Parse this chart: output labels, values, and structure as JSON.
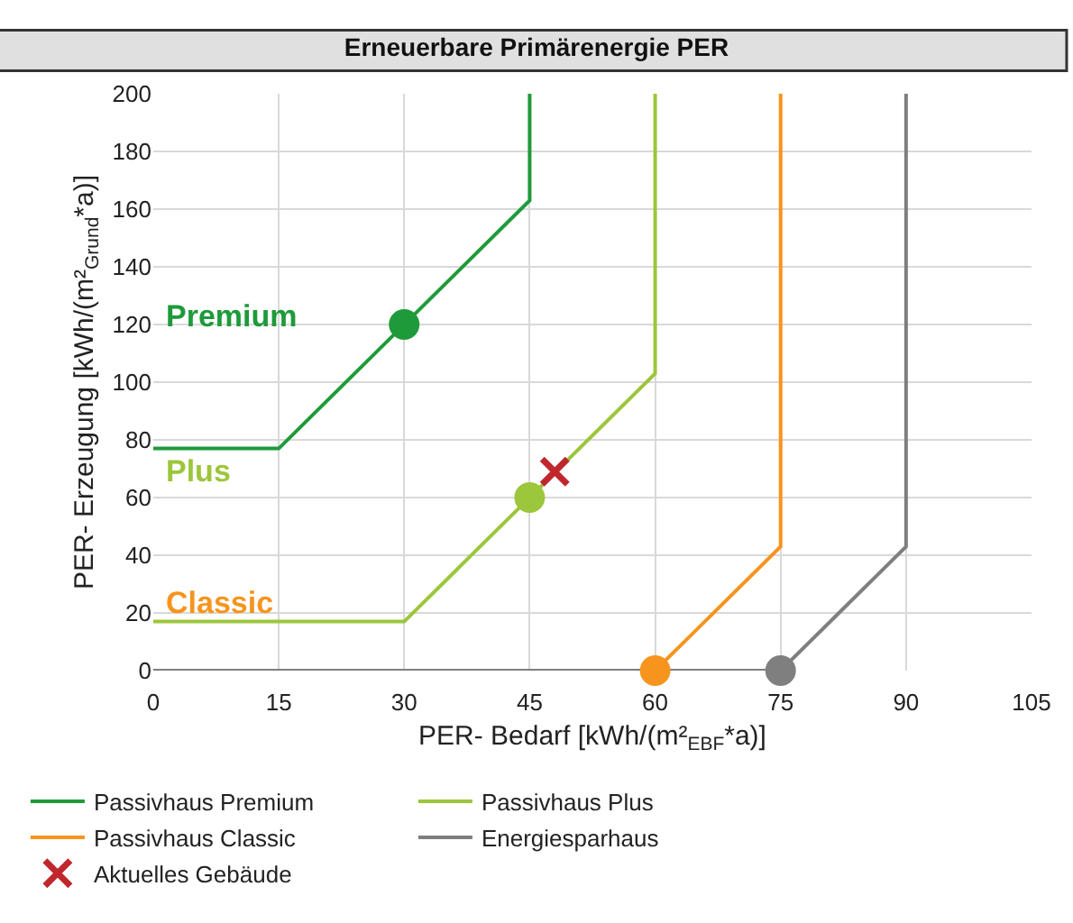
{
  "chart_data": {
    "type": "line",
    "title": "Erneuerbare Primärenergie PER",
    "xlabel": "PER- Bedarf [kWh/(m²$_{EBF}$*a)]",
    "ylabel": "PER- Erzeugung [kWh/(m²$_{Grund}$*a)]",
    "xlim": [
      0,
      105
    ],
    "xticks": [
      0,
      15,
      30,
      45,
      60,
      75,
      90,
      105
    ],
    "ylim": [
      0,
      200
    ],
    "yticks": [
      0,
      20,
      40,
      60,
      80,
      100,
      120,
      140,
      160,
      180,
      200
    ],
    "grid": true,
    "legend": "bottom",
    "marker": "none",
    "line_style": "solid",
    "series": [
      {
        "name": "Passivhaus Premium",
        "color": "#1e9a3a",
        "x": [
          0,
          15,
          45,
          45
        ],
        "values": [
          77,
          77,
          163,
          200
        ]
      },
      {
        "name": "Passivhaus Plus",
        "color": "#9cc63b",
        "x": [
          0,
          30,
          60,
          60
        ],
        "values": [
          17,
          17,
          103,
          200
        ]
      },
      {
        "name": "Passivhaus Classic",
        "color": "#f7941d",
        "x": [
          60,
          75,
          75
        ],
        "values": [
          0,
          43,
          200
        ]
      },
      {
        "name": "Energiesparhaus",
        "color": "#7f7f7f",
        "x": [
          0,
          75,
          90,
          90
        ],
        "values": [
          0,
          0,
          43,
          200
        ]
      },
      {
        "type": "scatter",
        "marker": "circle",
        "color": "#1e9a3a",
        "x": [
          30
        ],
        "values": [
          120
        ]
      },
      {
        "type": "scatter",
        "marker": "circle",
        "color": "#9cc63b",
        "x": [
          45
        ],
        "values": [
          60
        ]
      },
      {
        "type": "scatter",
        "marker": "circle",
        "color": "#f7941d",
        "x": [
          60
        ],
        "values": [
          0
        ]
      },
      {
        "type": "scatter",
        "marker": "circle",
        "color": "#7f7f7f",
        "x": [
          75
        ],
        "values": [
          0
        ]
      },
      {
        "type": "scatter",
        "marker": "cross",
        "name": "Aktuelles Gebäude",
        "color": "#c0272d",
        "x": [
          48
        ],
        "values": [
          69
        ]
      }
    ],
    "annotations": [
      "Premium",
      "Plus",
      "Classic"
    ]
  }
}
